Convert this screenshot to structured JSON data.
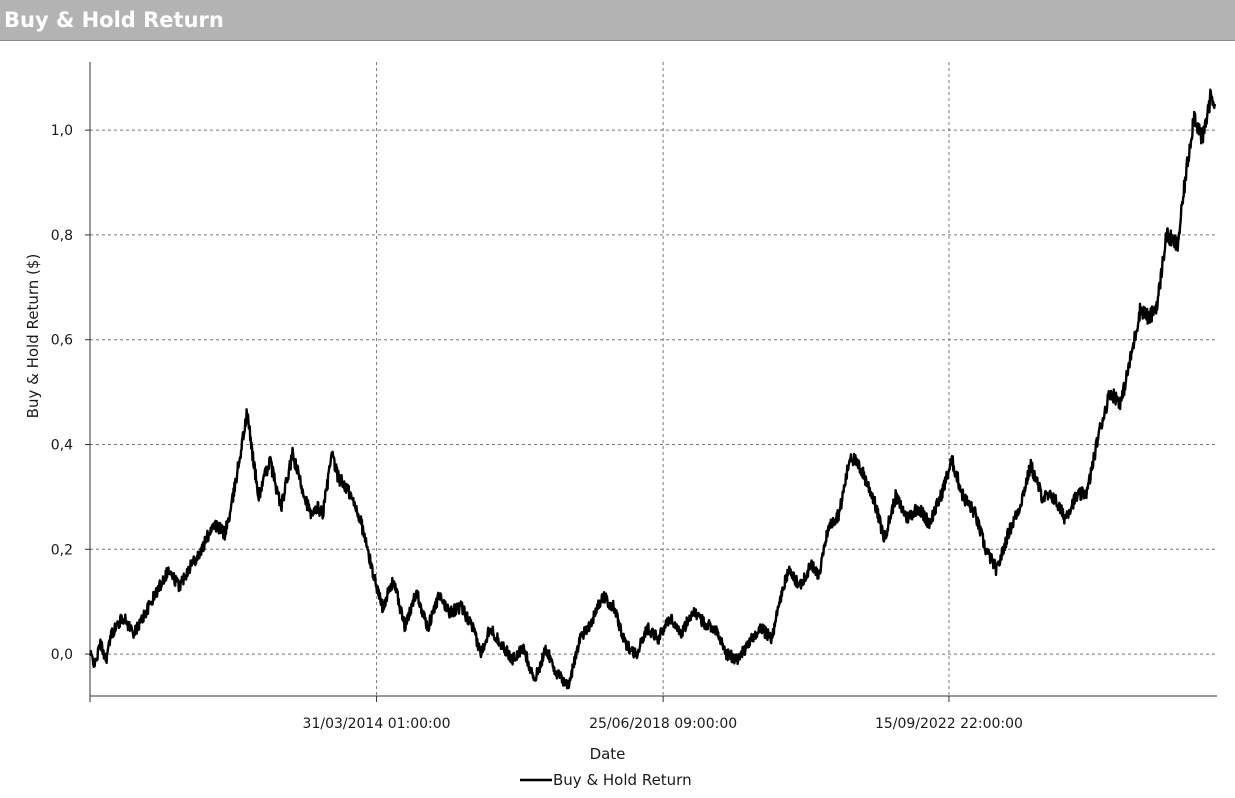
{
  "window": {
    "title": "Buy & Hold Return"
  },
  "chart_data": {
    "type": "line",
    "title": "",
    "xlabel": "Date",
    "ylabel": "Buy & Hold Return ($)",
    "grid": true,
    "legend": "bottom-center",
    "line_color": "#000000",
    "xlim": [
      "2010-01-04",
      "2026-09-01"
    ],
    "ylim": [
      -0.08,
      1.13
    ],
    "yticks": [
      0.0,
      0.2,
      0.4,
      0.6,
      0.8,
      1.0
    ],
    "ytick_labels": [
      "0,0",
      "0,2",
      "0,4",
      "0,6",
      "0,8",
      "1,0"
    ],
    "xticks": [
      "2010-01-04",
      "2014-03-31",
      "2018-06-25",
      "2022-09-15"
    ],
    "xtick_labels": [
      "",
      "31/03/2014 01:00:00",
      "25/06/2018 09:00:00",
      "15/09/2022 22:00:00"
    ],
    "series": [
      {
        "name": "Buy & Hold Return",
        "x": [
          "2010-01-04",
          "2010-02-01",
          "2010-03-01",
          "2010-04-01",
          "2010-05-01",
          "2010-07-01",
          "2010-09-01",
          "2010-11-01",
          "2011-01-01",
          "2011-03-01",
          "2011-05-01",
          "2011-07-01",
          "2011-09-01",
          "2011-11-01",
          "2012-01-01",
          "2012-02-01",
          "2012-03-15",
          "2012-05-01",
          "2012-07-01",
          "2012-09-01",
          "2012-11-01",
          "2013-01-01",
          "2013-03-01",
          "2013-04-15",
          "2013-05-15",
          "2013-06-15",
          "2013-08-01",
          "2013-09-01",
          "2013-11-01",
          "2014-01-01",
          "2014-03-01",
          "2014-05-01",
          "2014-07-01",
          "2014-09-01",
          "2014-11-01",
          "2015-01-01",
          "2015-03-01",
          "2015-05-01",
          "2015-07-01",
          "2015-09-01",
          "2015-10-15",
          "2015-12-01",
          "2016-02-01",
          "2016-04-01",
          "2016-06-01",
          "2016-08-01",
          "2016-10-01",
          "2016-12-01",
          "2017-02-01",
          "2017-04-01",
          "2017-06-01",
          "2017-08-01",
          "2017-10-01",
          "2017-12-01",
          "2018-02-01",
          "2018-04-01",
          "2018-06-01",
          "2018-08-01",
          "2018-10-01",
          "2018-12-01",
          "2019-02-01",
          "2019-04-01",
          "2019-06-01",
          "2019-08-01",
          "2019-10-01",
          "2019-12-01",
          "2020-02-01",
          "2020-03-15",
          "2020-05-01",
          "2020-07-01",
          "2020-09-01",
          "2020-10-15",
          "2020-12-01",
          "2021-02-01",
          "2021-04-01",
          "2021-06-01",
          "2021-08-01",
          "2021-10-01",
          "2021-12-01",
          "2022-02-01",
          "2022-04-01",
          "2022-06-01",
          "2022-08-01",
          "2022-10-01",
          "2022-12-01",
          "2023-02-01",
          "2023-04-01",
          "2023-06-01",
          "2023-08-01",
          "2023-10-01",
          "2023-12-01",
          "2024-02-01",
          "2024-04-01",
          "2024-06-01",
          "2024-08-01",
          "2024-10-01",
          "2024-12-01",
          "2025-02-01",
          "2025-04-01",
          "2025-06-01",
          "2025-07-15",
          "2025-09-01",
          "2025-10-15",
          "2025-12-01",
          "2026-02-01",
          "2026-03-15",
          "2026-05-01",
          "2026-06-15",
          "2026-08-01",
          "2026-08-20"
        ],
        "y": [
          0.0,
          -0.02,
          0.02,
          -0.01,
          0.04,
          0.07,
          0.04,
          0.08,
          0.12,
          0.16,
          0.13,
          0.17,
          0.2,
          0.25,
          0.23,
          0.27,
          0.36,
          0.46,
          0.3,
          0.37,
          0.28,
          0.38,
          0.31,
          0.26,
          0.28,
          0.27,
          0.38,
          0.34,
          0.31,
          0.26,
          0.17,
          0.09,
          0.14,
          0.05,
          0.12,
          0.05,
          0.11,
          0.08,
          0.09,
          0.05,
          0.0,
          0.05,
          0.02,
          -0.01,
          0.01,
          -0.05,
          0.01,
          -0.04,
          -0.06,
          0.03,
          0.06,
          0.11,
          0.09,
          0.02,
          0.0,
          0.05,
          0.03,
          0.07,
          0.04,
          0.08,
          0.06,
          0.05,
          0.0,
          -0.01,
          0.02,
          0.05,
          0.03,
          0.1,
          0.16,
          0.13,
          0.17,
          0.15,
          0.24,
          0.27,
          0.38,
          0.35,
          0.3,
          0.22,
          0.3,
          0.26,
          0.28,
          0.25,
          0.3,
          0.37,
          0.3,
          0.27,
          0.2,
          0.16,
          0.23,
          0.28,
          0.36,
          0.3,
          0.3,
          0.26,
          0.3,
          0.31,
          0.42,
          0.5,
          0.48,
          0.58,
          0.66,
          0.64,
          0.67,
          0.8,
          0.78,
          0.91,
          1.03,
          0.98,
          1.07,
          1.05
        ]
      }
    ]
  }
}
